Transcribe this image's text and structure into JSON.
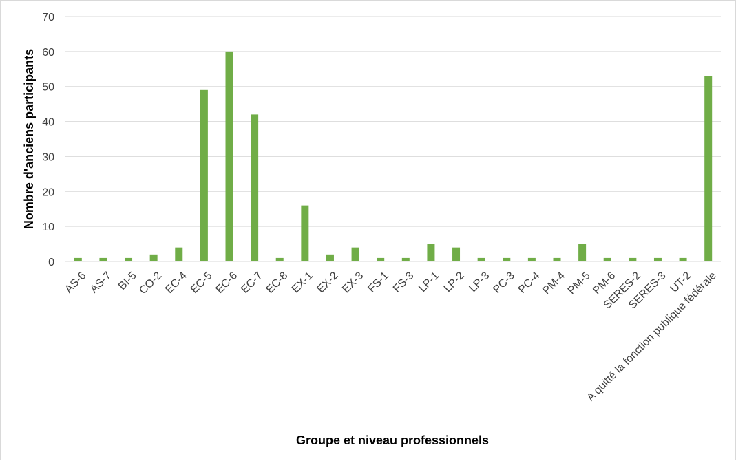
{
  "chart_data": {
    "type": "bar",
    "title": "",
    "xlabel": "Groupe et niveau professionnels",
    "ylabel": "Nombre d'anciens participants",
    "ylim": [
      0,
      70
    ],
    "yticks": [
      0,
      10,
      20,
      30,
      40,
      50,
      60,
      70
    ],
    "grid": true,
    "categories": [
      "AS-6",
      "AS-7",
      "BI-5",
      "CO-2",
      "EC-4",
      "EC-5",
      "EC-6",
      "EC-7",
      "EC-8",
      "EX-1",
      "EX-2",
      "EX-3",
      "FS-1",
      "FS-3",
      "LP-1",
      "LP-2",
      "LP-3",
      "PC-3",
      "PC-4",
      "PM-4",
      "PM-5",
      "PM-6",
      "SERES-2",
      "SERES-3",
      "UT-2",
      "A quitté la fonction publique fédérale"
    ],
    "values": [
      1,
      1,
      1,
      2,
      4,
      49,
      60,
      42,
      1,
      16,
      2,
      4,
      1,
      1,
      5,
      4,
      1,
      1,
      1,
      1,
      5,
      1,
      1,
      1,
      1,
      53
    ],
    "colors": {
      "bar": "#70ad47",
      "grid": "#d9d9d9",
      "tick_text": "#404040"
    }
  }
}
